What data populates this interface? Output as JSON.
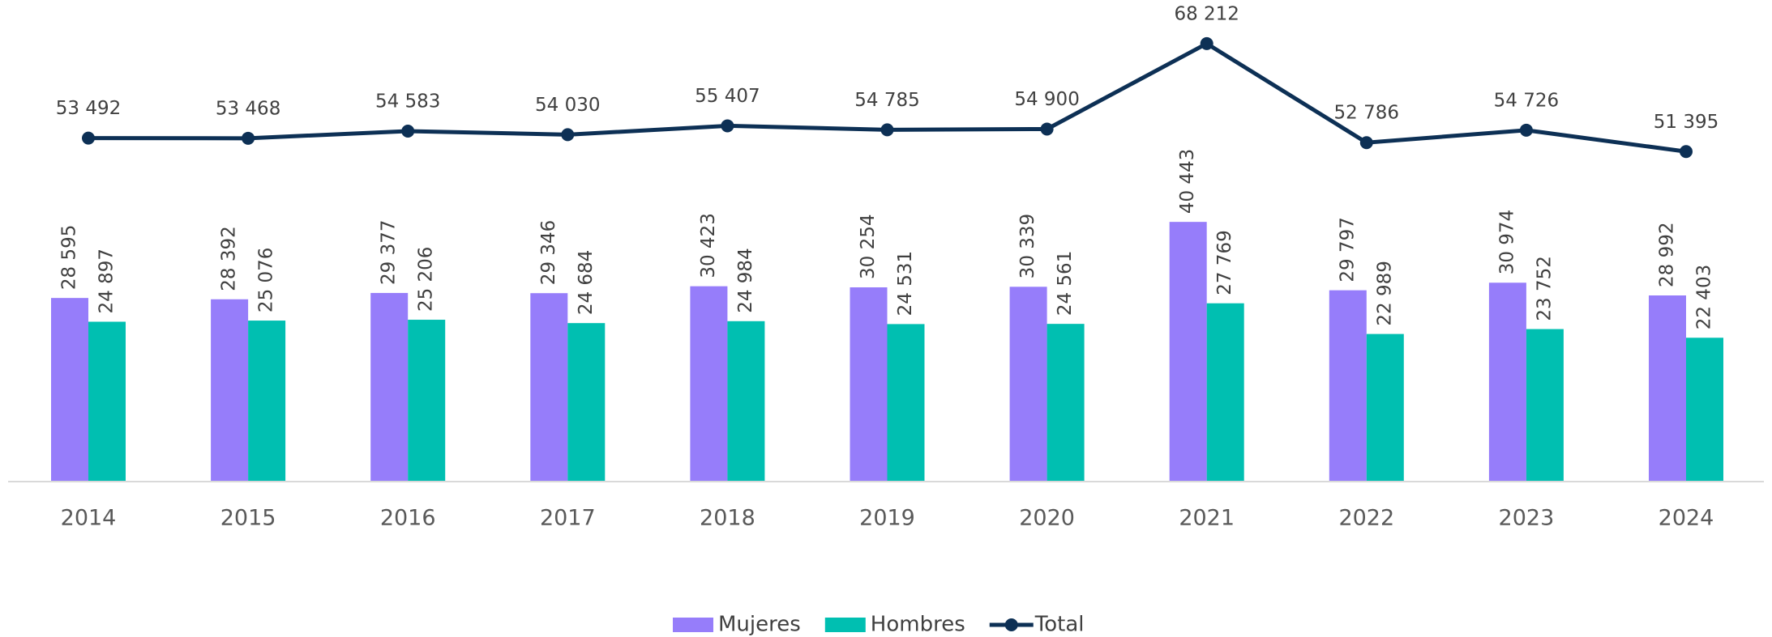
{
  "chart_data": {
    "type": "bar_line",
    "categories": [
      "2014",
      "2015",
      "2016",
      "2017",
      "2018",
      "2019",
      "2020",
      "2021",
      "2022",
      "2023",
      "2024"
    ],
    "ylim": [
      0,
      75000
    ],
    "series": [
      {
        "name": "Mujeres",
        "type": "bar",
        "color": "#967dfa",
        "values": [
          28595,
          28392,
          29377,
          29346,
          30423,
          30254,
          30339,
          40443,
          29797,
          30974,
          28992
        ],
        "value_labels": [
          "28 595",
          "28 392",
          "29 377",
          "29 346",
          "30 423",
          "30 254",
          "30 339",
          "40 443",
          "29 797",
          "30 974",
          "28 992"
        ]
      },
      {
        "name": "Hombres",
        "type": "bar",
        "color": "#00bfb1",
        "values": [
          24897,
          25076,
          25206,
          24684,
          24984,
          24531,
          24561,
          27769,
          22989,
          23752,
          22403
        ],
        "value_labels": [
          "24 897",
          "25 076",
          "25 206",
          "24 684",
          "24 984",
          "24 531",
          "24 561",
          "27 769",
          "22 989",
          "23 752",
          "22 403"
        ]
      },
      {
        "name": "Total",
        "type": "line",
        "color": "#0d3055",
        "values": [
          53492,
          53468,
          54583,
          54030,
          55407,
          54785,
          54900,
          68212,
          52786,
          54726,
          51395
        ],
        "value_labels": [
          "53 492",
          "53 468",
          "54 583",
          "54 030",
          "55 407",
          "54 785",
          "54 900",
          "68 212",
          "52 786",
          "54 726",
          "51 395"
        ]
      }
    ],
    "legend": "bottom"
  }
}
